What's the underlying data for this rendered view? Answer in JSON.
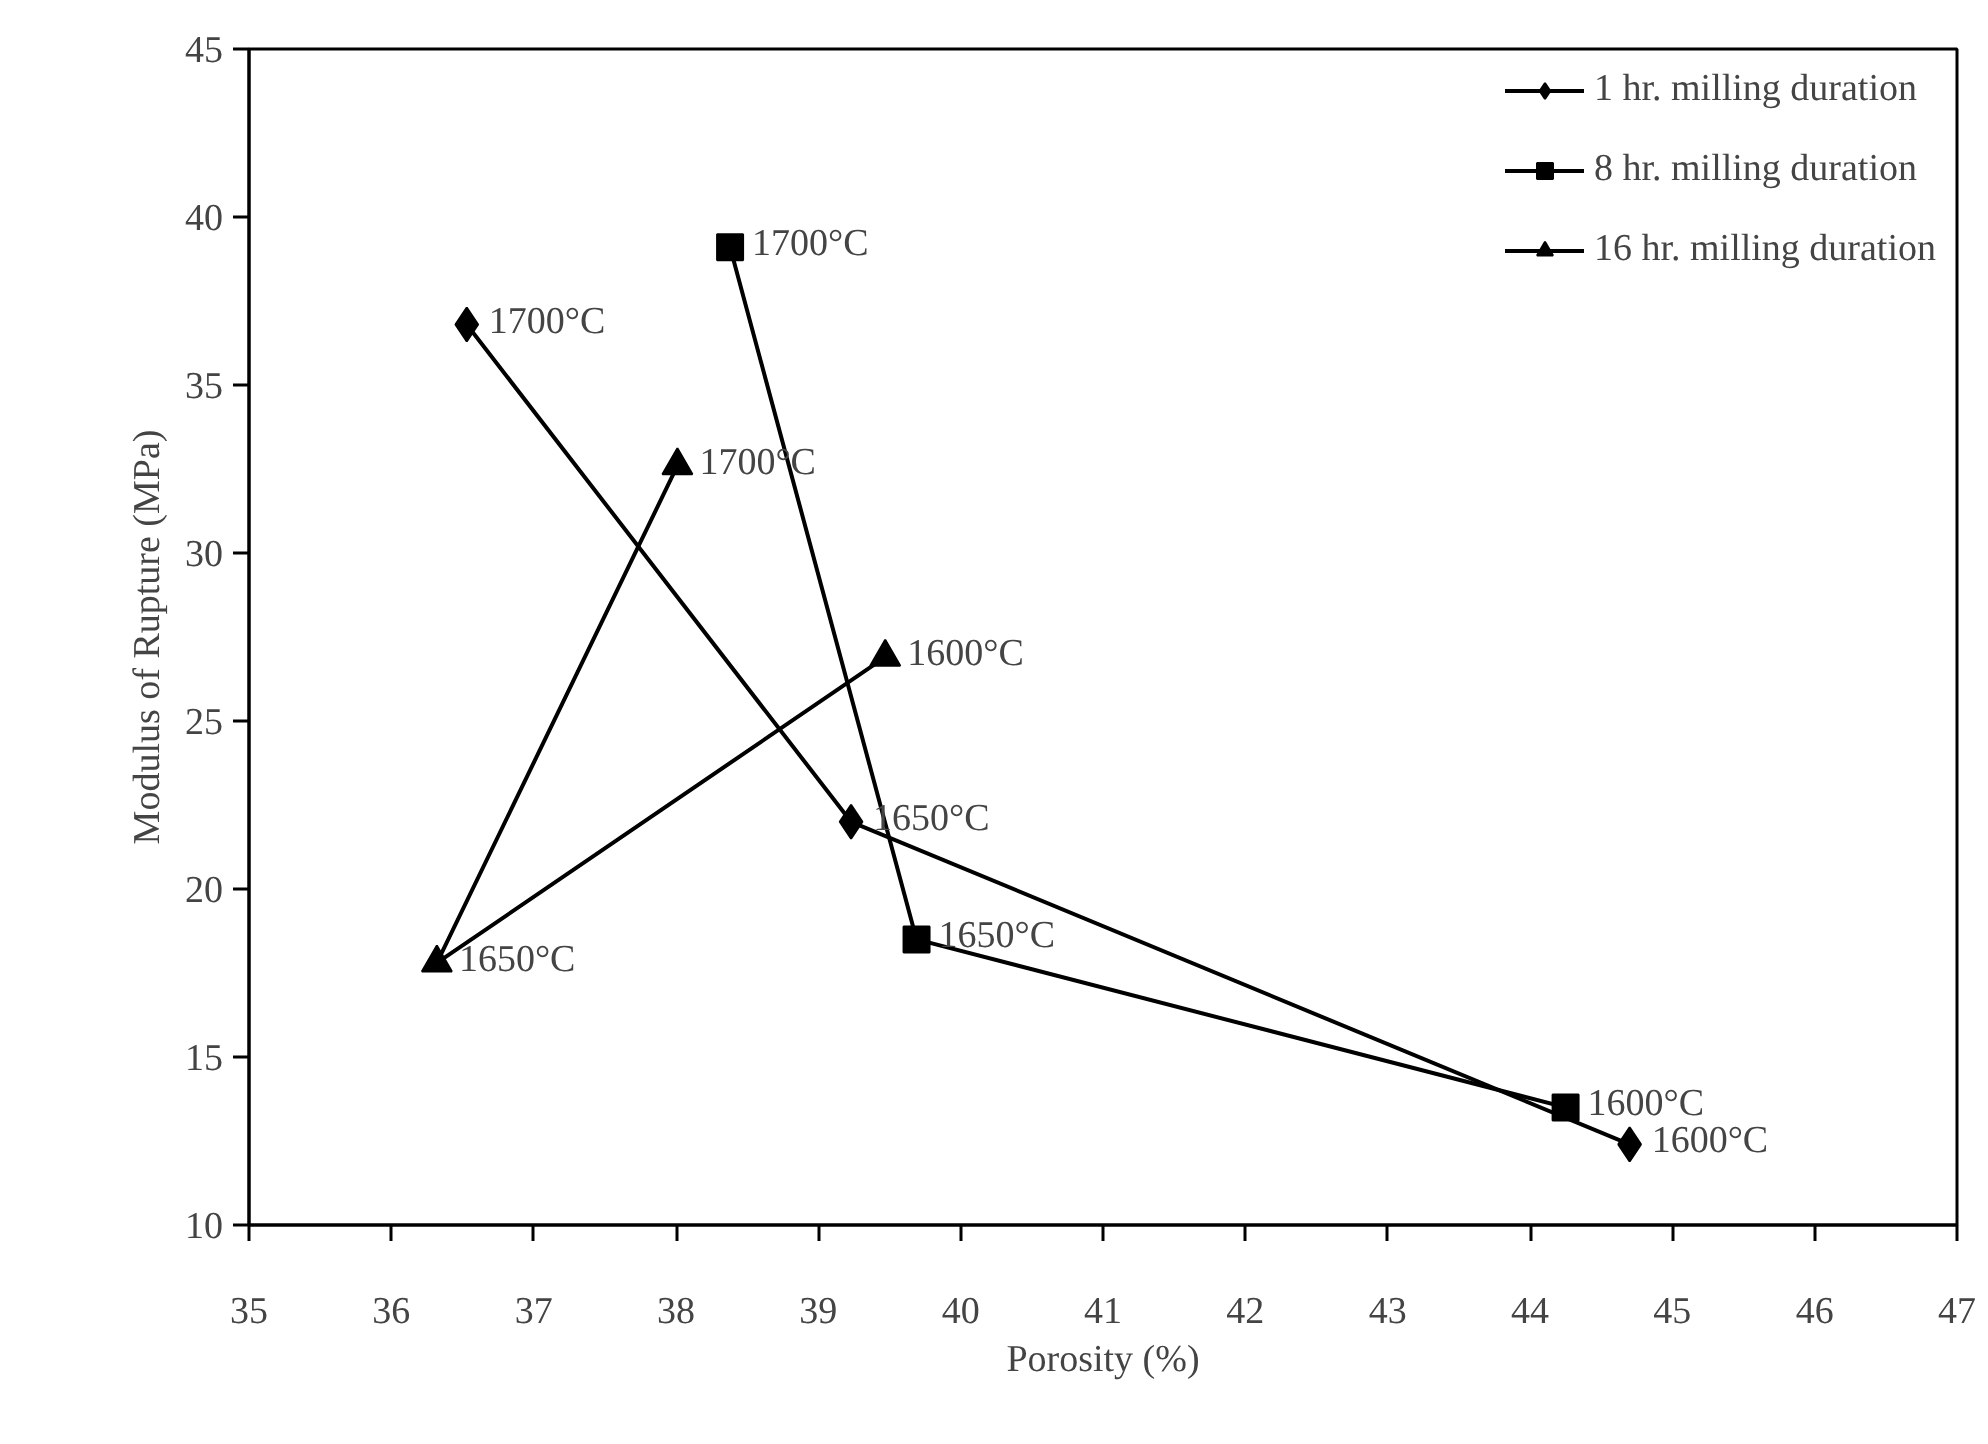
{
  "chart_data": {
    "type": "line",
    "xlabel": "Porosity (%)",
    "ylabel": "Modulus of Rupture (MPa)",
    "xlim": [
      35,
      47
    ],
    "xticks": [
      35,
      36,
      37,
      38,
      39,
      40,
      41,
      42,
      43,
      44,
      45,
      46,
      47
    ],
    "ylim": [
      10,
      45
    ],
    "yticks": [
      10,
      15,
      20,
      25,
      30,
      35,
      40,
      45
    ],
    "grid": false,
    "legend": "top right",
    "line_style": "solid",
    "series": [
      {
        "name": "1 hr. milling duration",
        "color": "#000000",
        "marker": "diamond",
        "x": [
          36.53,
          39.23,
          44.7
        ],
        "values": [
          36.8,
          22.0,
          12.4
        ]
      },
      {
        "name": "8 hr. milling duration",
        "color": "#000000",
        "marker": "square",
        "x": [
          38.38,
          39.69,
          44.25
        ],
        "values": [
          39.1,
          18.5,
          13.5
        ]
      },
      {
        "name": "16 hr. milling duration",
        "color": "#000000",
        "marker": "triangle",
        "x": [
          38.01,
          36.32,
          39.47
        ],
        "values": [
          32.6,
          17.8,
          26.9
        ]
      }
    ],
    "annotations": [
      {
        "text": "1700°C",
        "x": 36.53,
        "y": 36.8
      },
      {
        "text": "1650°C",
        "x": 39.23,
        "y": 22.0
      },
      {
        "text": "1600°C",
        "x": 44.7,
        "y": 12.4
      },
      {
        "text": "1700°C",
        "x": 38.38,
        "y": 39.1
      },
      {
        "text": "1650°C",
        "x": 39.69,
        "y": 18.5
      },
      {
        "text": "1600°C",
        "x": 44.25,
        "y": 13.5
      },
      {
        "text": "1700°C",
        "x": 38.01,
        "y": 32.6
      },
      {
        "text": "1650°C",
        "x": 36.32,
        "y": 17.8
      },
      {
        "text": "1600°C",
        "x": 39.47,
        "y": 26.9
      }
    ]
  }
}
